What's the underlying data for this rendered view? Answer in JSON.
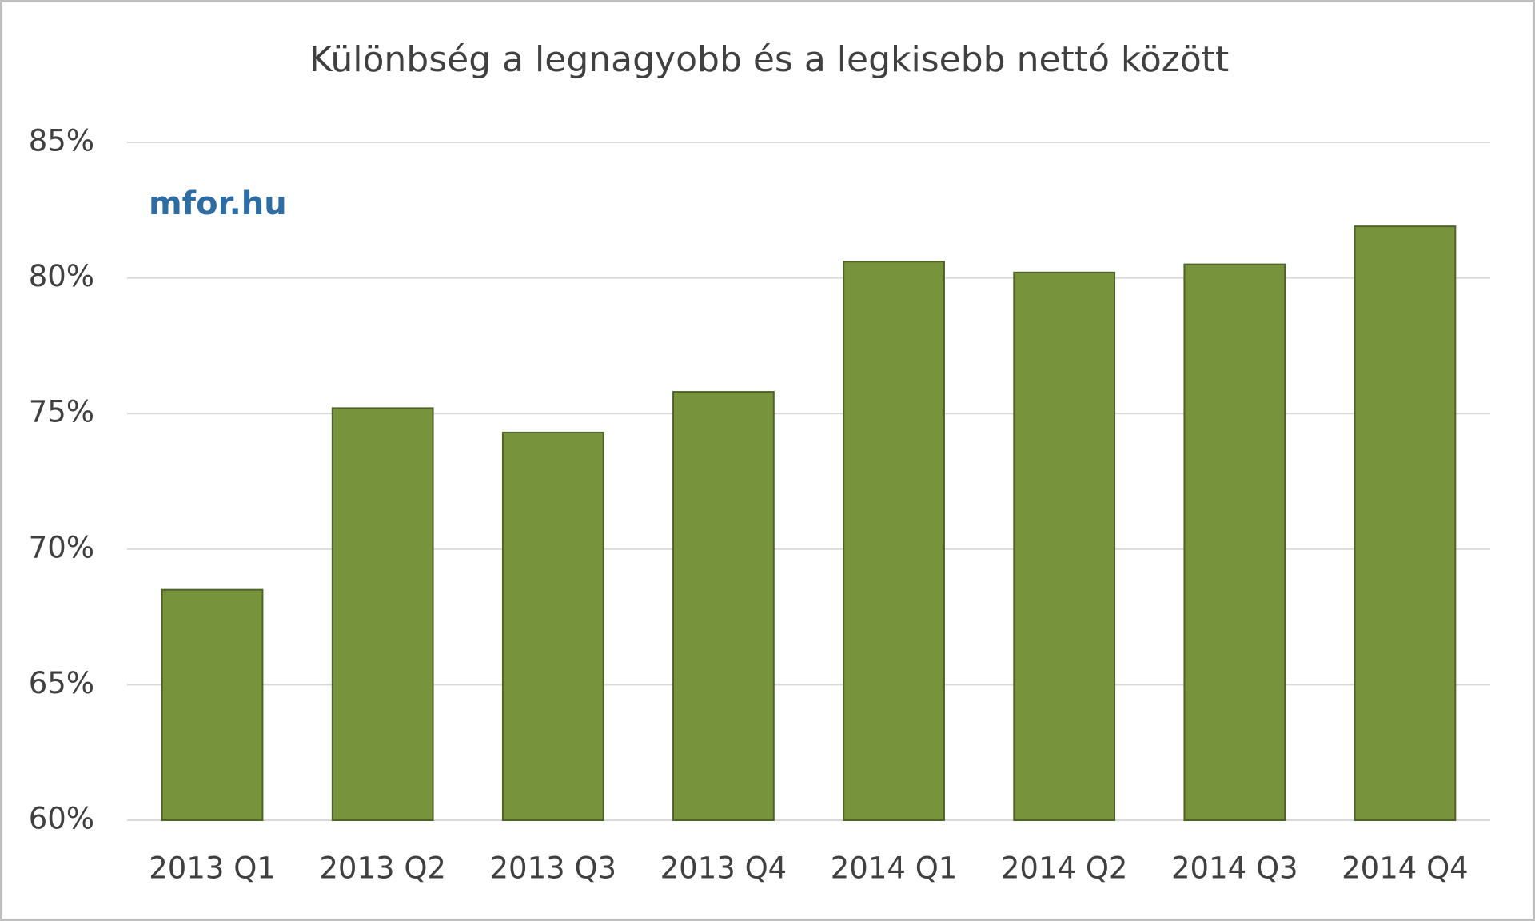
{
  "chart_data": {
    "type": "bar",
    "title": "Különbség a legnagyobb és a legkisebb nettó között",
    "watermark": "mfor.hu",
    "categories": [
      "2013 Q1",
      "2013 Q2",
      "2013 Q3",
      "2013 Q4",
      "2014 Q1",
      "2014 Q2",
      "2014 Q3",
      "2014 Q4"
    ],
    "values": [
      68.5,
      75.2,
      74.3,
      75.8,
      80.6,
      80.2,
      80.5,
      81.9
    ],
    "color": "#77933c",
    "ylim": [
      60,
      85
    ],
    "yticks": [
      {
        "value": 60,
        "label": "60%"
      },
      {
        "value": 65,
        "label": "65%"
      },
      {
        "value": 70,
        "label": "70%"
      },
      {
        "value": 75,
        "label": "75%"
      },
      {
        "value": 80,
        "label": "80%"
      },
      {
        "value": 85,
        "label": "85%"
      }
    ],
    "grid": true
  }
}
